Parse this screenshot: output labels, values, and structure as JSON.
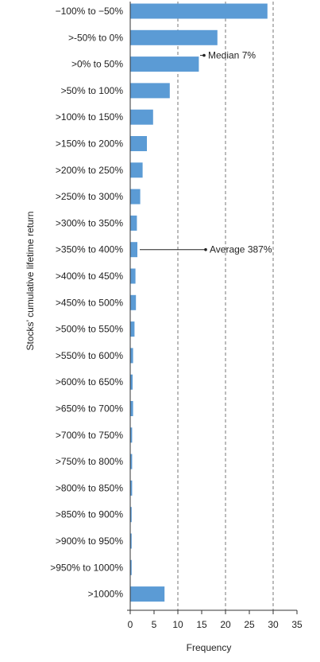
{
  "chart_data": {
    "type": "bar",
    "orientation": "horizontal",
    "categories": [
      "−100% to −50%",
      ">-50% to 0%",
      ">0% to 50%",
      ">50% to 100%",
      ">100% to 150%",
      ">150% to 200%",
      ">200% to 250%",
      ">250% to 300%",
      ">300% to 350%",
      ">350% to 400%",
      ">400% to 450%",
      ">450% to 500%",
      ">500% to 550%",
      ">550% to 600%",
      ">600% to 650%",
      ">650% to 700%",
      ">700% to 750%",
      ">750% to 800%",
      ">800% to 850%",
      ">850% to 900%",
      ">900% to 950%",
      ">950% to 1000%",
      ">1000%"
    ],
    "values": [
      28.8,
      18.3,
      14.4,
      8.3,
      4.8,
      3.5,
      2.6,
      2.1,
      1.4,
      1.5,
      1.1,
      1.2,
      0.9,
      0.6,
      0.5,
      0.6,
      0.4,
      0.4,
      0.4,
      0.3,
      0.3,
      0.3,
      7.2
    ],
    "xlabel": "Frequency",
    "ylabel": "Stocks’ cumulative lifetime return",
    "xlim": [
      0,
      35
    ],
    "xticks": [
      0,
      5,
      10,
      15,
      20,
      25,
      30,
      35
    ],
    "grid_x": [
      10,
      20,
      30
    ],
    "bar_color": "#5b9bd5",
    "annotations": [
      {
        "label": "Median 7%",
        "category_index": 2,
        "arrow_to": 15
      },
      {
        "label": "Average 387%",
        "category_index": 9,
        "arrow_to": 15.5
      }
    ]
  }
}
